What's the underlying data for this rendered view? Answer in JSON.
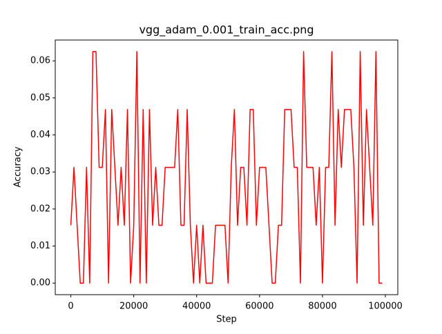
{
  "chart_data": {
    "type": "line",
    "title": "vgg_adam_0.001_train_acc.png",
    "xlabel": "Step",
    "ylabel": "Accuracy",
    "x": [
      0,
      1000,
      2000,
      3000,
      4000,
      5000,
      6000,
      7000,
      8000,
      9000,
      10000,
      11000,
      12000,
      13000,
      14000,
      15000,
      16000,
      17000,
      18000,
      19000,
      20000,
      21000,
      22000,
      23000,
      24000,
      25000,
      26000,
      27000,
      28000,
      29000,
      30000,
      31000,
      32000,
      33000,
      34000,
      35000,
      36000,
      37000,
      38000,
      39000,
      40000,
      41000,
      42000,
      43000,
      44000,
      45000,
      46000,
      47000,
      48000,
      49000,
      50000,
      51000,
      52000,
      53000,
      54000,
      55000,
      56000,
      57000,
      58000,
      59000,
      60000,
      61000,
      62000,
      63000,
      64000,
      65000,
      66000,
      67000,
      68000,
      69000,
      70000,
      71000,
      72000,
      73000,
      74000,
      75000,
      76000,
      77000,
      78000,
      79000,
      80000,
      81000,
      82000,
      83000,
      84000,
      85000,
      86000,
      87000,
      88000,
      89000,
      90000,
      91000,
      92000,
      93000,
      94000,
      95000,
      96000,
      97000,
      98000,
      99000
    ],
    "values": [
      0.015625,
      0.03125,
      0.015625,
      0,
      0,
      0.03125,
      0,
      0.0625,
      0.0625,
      0.03125,
      0.03125,
      0.046875,
      0,
      0.046875,
      0.03125,
      0.015625,
      0.03125,
      0.015625,
      0.046875,
      0,
      0.015625,
      0.0625,
      0,
      0.046875,
      0,
      0.046875,
      0.015625,
      0.03125,
      0.015625,
      0.015625,
      0.03125,
      0.03125,
      0.03125,
      0.03125,
      0.046875,
      0.015625,
      0.015625,
      0.046875,
      0.015625,
      0,
      0.015625,
      0,
      0.015625,
      0,
      0,
      0,
      0.015625,
      0.015625,
      0.015625,
      0.015625,
      0,
      0.03125,
      0.046875,
      0.015625,
      0.03125,
      0.03125,
      0.015625,
      0.046875,
      0.046875,
      0.015625,
      0.03125,
      0.03125,
      0.03125,
      0.015625,
      0,
      0,
      0.015625,
      0.015625,
      0.046875,
      0.046875,
      0.046875,
      0.03125,
      0.03125,
      0,
      0.0625,
      0.03125,
      0.03125,
      0.03125,
      0.015625,
      0.03125,
      0,
      0.03125,
      0.03125,
      0.0625,
      0.015625,
      0.046875,
      0.03125,
      0.046875,
      0.046875,
      0.046875,
      0.03125,
      0,
      0.0625,
      0.015625,
      0.046875,
      0.03125,
      0.015625,
      0.0625,
      0,
      0
    ],
    "color": "#ff0000",
    "xlim": [
      -4950,
      103950
    ],
    "xticks": [
      0,
      20000,
      40000,
      60000,
      80000,
      100000
    ],
    "ylim": [
      -0.003125,
      0.065625
    ],
    "yticks": [
      {
        "value": 0,
        "label": "0.00"
      },
      {
        "value": 0.01,
        "label": "0.01"
      },
      {
        "value": 0.02,
        "label": "0.02"
      },
      {
        "value": 0.03,
        "label": "0.03"
      },
      {
        "value": 0.04,
        "label": "0.04"
      },
      {
        "value": 0.05,
        "label": "0.05"
      },
      {
        "value": 0.06,
        "label": "0.06"
      }
    ]
  }
}
